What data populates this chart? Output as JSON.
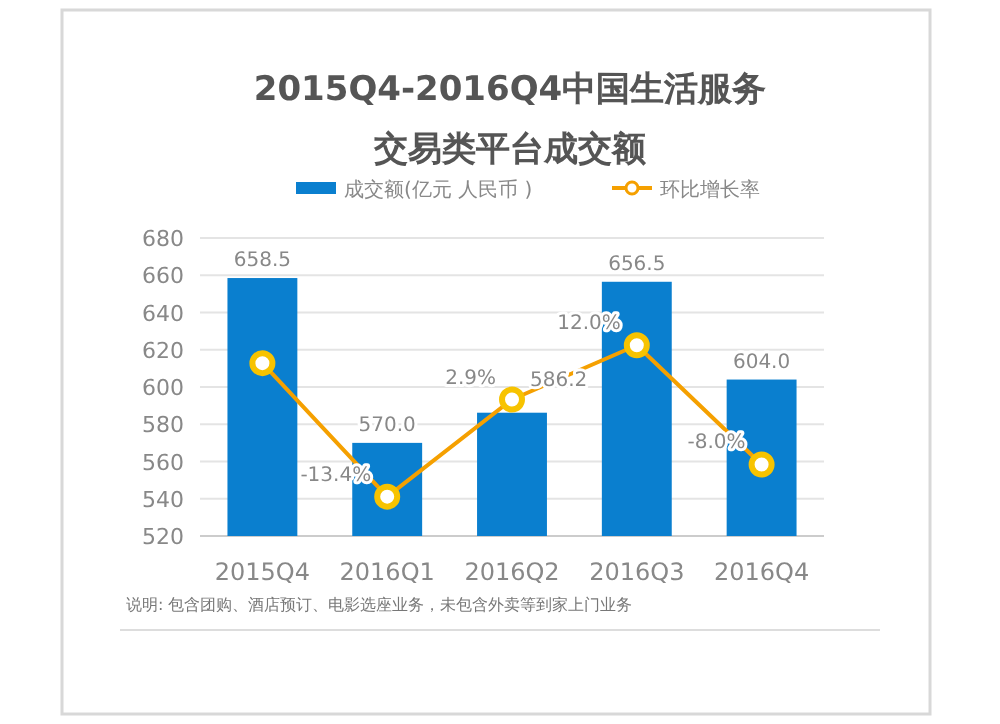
{
  "chart_data": {
    "type": "bar",
    "title": "2015Q4-2016Q4中国生活服务",
    "subtitle": "交易类平台成交额",
    "categories": [
      "2015Q4",
      "2016Q1",
      "2016Q2",
      "2016Q3",
      "2016Q4"
    ],
    "series": [
      {
        "name": "成交额(亿元 人民币 )",
        "color": "#0a7fcf",
        "values": [
          658.5,
          570.0,
          586.2,
          656.5,
          604.0
        ],
        "value_labels": [
          "658.5",
          "570.0",
          "586.2",
          "656.5",
          "604.0"
        ]
      },
      {
        "name": "环比增长率",
        "type": "line",
        "axis": "y2",
        "color": "#f5a000",
        "marker": "circle",
        "values": [
          9.0,
          -13.4,
          2.9,
          12.0,
          -8.0
        ],
        "value_labels": [
          null,
          "-13.4%",
          "2.9%",
          "12.0%",
          "-8.0%"
        ]
      }
    ],
    "ylim": [
      520,
      680
    ],
    "yticks": [
      520,
      540,
      560,
      580,
      600,
      620,
      640,
      660,
      680
    ],
    "y2lim": [
      -20,
      30
    ],
    "grid": "y",
    "legend": "top",
    "annotations": [
      "说明: 包含团购、酒店预订、电影选座业务，未包含外卖等到家上门业务"
    ]
  }
}
